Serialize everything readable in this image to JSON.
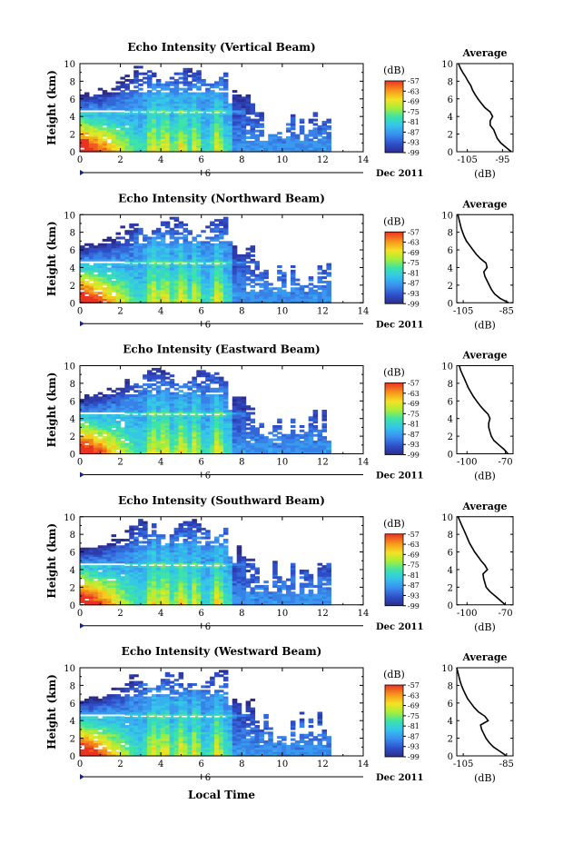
{
  "figure": {
    "xlabel": "Local Time",
    "date_label": "Dec 2011",
    "day_marker": "6",
    "colorbar_unit": "(dB)",
    "colorbar_ticks": [
      "-57",
      "-63",
      "-69",
      "-75",
      "-81",
      "-87",
      "-93",
      "-99"
    ],
    "average_title": "Average",
    "average_xlabel": "(dB)"
  },
  "chart_data": [
    {
      "type": "heatmap",
      "title": "Echo Intensity (Vertical Beam)",
      "xlabel": "Local Time",
      "ylabel": "Height (km)",
      "xlim": [
        0,
        14
      ],
      "ylim": [
        0,
        10
      ],
      "x_ticks": [
        "0",
        "2",
        "4",
        "6",
        "8",
        "10",
        "12",
        "14"
      ],
      "y_ticks": [
        "0",
        "2",
        "4",
        "6",
        "8",
        "10"
      ],
      "colorbar": {
        "unit": "(dB)",
        "range": [
          -99,
          -57
        ],
        "ticks": [
          "-57",
          "-63",
          "-69",
          "-75",
          "-81",
          "-87",
          "-93",
          "-99"
        ]
      },
      "features": {
        "bright_band_height_km": 4.5,
        "data_end_hour": 12.4
      },
      "average_profile": {
        "title": "Average",
        "xlabel": "(dB)",
        "x_ticks": [
          "-105",
          "-95"
        ],
        "xlim": [
          -108,
          -92
        ],
        "height_km": [
          0,
          0.5,
          1,
          1.5,
          2,
          2.5,
          3,
          3.5,
          4,
          4.5,
          5,
          5.5,
          6,
          6.5,
          7,
          7.5,
          8,
          8.5,
          9,
          9.5,
          10
        ],
        "values": [
          -92.5,
          -94,
          -95.5,
          -96.5,
          -97,
          -97.5,
          -98.5,
          -98.5,
          -97.8,
          -98.5,
          -100,
          -101,
          -102,
          -102.8,
          -103.5,
          -104,
          -104.8,
          -105.5,
          -106.3,
          -107,
          -107.5
        ]
      }
    },
    {
      "type": "heatmap",
      "title": "Echo Intensity (Northward Beam)",
      "xlabel": "Local Time",
      "ylabel": "Height (km)",
      "xlim": [
        0,
        14
      ],
      "ylim": [
        0,
        10
      ],
      "x_ticks": [
        "0",
        "2",
        "4",
        "6",
        "8",
        "10",
        "12",
        "14"
      ],
      "y_ticks": [
        "0",
        "2",
        "4",
        "6",
        "8",
        "10"
      ],
      "colorbar": {
        "unit": "(dB)",
        "range": [
          -99,
          -57
        ],
        "ticks": [
          "-57",
          "-63",
          "-69",
          "-75",
          "-81",
          "-87",
          "-93",
          "-99"
        ]
      },
      "features": {
        "bright_band_height_km": 4.5,
        "data_end_hour": 12.4
      },
      "average_profile": {
        "title": "Average",
        "xlabel": "(dB)",
        "x_ticks": [
          "-105",
          "-85"
        ],
        "xlim": [
          -108,
          -82
        ],
        "height_km": [
          0,
          0.5,
          1,
          1.5,
          2,
          2.5,
          3,
          3.5,
          4,
          4.5,
          5,
          5.5,
          6,
          6.5,
          7,
          7.5,
          8,
          8.5,
          9,
          9.5,
          10
        ],
        "values": [
          -84,
          -88,
          -90.5,
          -92,
          -93,
          -94,
          -95,
          -95.5,
          -94,
          -94.5,
          -97,
          -99,
          -100.5,
          -102,
          -103.5,
          -104.5,
          -105.3,
          -106,
          -106.5,
          -107,
          -107.5
        ]
      }
    },
    {
      "type": "heatmap",
      "title": "Echo Intensity (Eastward Beam)",
      "xlabel": "Local Time",
      "ylabel": "Height (km)",
      "xlim": [
        0,
        14
      ],
      "ylim": [
        0,
        10
      ],
      "x_ticks": [
        "0",
        "2",
        "4",
        "6",
        "8",
        "10",
        "12",
        "14"
      ],
      "y_ticks": [
        "0",
        "2",
        "4",
        "6",
        "8",
        "10"
      ],
      "colorbar": {
        "unit": "(dB)",
        "range": [
          -99,
          -57
        ],
        "ticks": [
          "-57",
          "-63",
          "-69",
          "-75",
          "-81",
          "-87",
          "-93",
          "-99"
        ]
      },
      "features": {
        "bright_band_height_km": 4.5,
        "data_end_hour": 12.4
      },
      "average_profile": {
        "title": "Average",
        "xlabel": "(dB)",
        "x_ticks": [
          "-100",
          "-70"
        ],
        "xlim": [
          -108,
          -64
        ],
        "height_km": [
          0,
          0.5,
          1,
          1.5,
          2,
          2.5,
          3,
          3.5,
          4,
          4.5,
          5,
          5.5,
          6,
          6.5,
          7,
          7.5,
          8,
          8.5,
          9,
          9.5,
          10
        ],
        "values": [
          -68,
          -71,
          -75,
          -79,
          -81,
          -82,
          -83,
          -83,
          -82,
          -83.5,
          -87,
          -90,
          -92.5,
          -95,
          -97,
          -99,
          -100.5,
          -102,
          -103.5,
          -105,
          -106
        ]
      }
    },
    {
      "type": "heatmap",
      "title": "Echo Intensity (Southward Beam)",
      "xlabel": "Local Time",
      "ylabel": "Height (km)",
      "xlim": [
        0,
        14
      ],
      "ylim": [
        0,
        10
      ],
      "x_ticks": [
        "0",
        "2",
        "4",
        "6",
        "8",
        "10",
        "12",
        "14"
      ],
      "y_ticks": [
        "0",
        "2",
        "4",
        "6",
        "8",
        "10"
      ],
      "colorbar": {
        "unit": "(dB)",
        "range": [
          -99,
          -57
        ],
        "ticks": [
          "-57",
          "-63",
          "-69",
          "-75",
          "-81",
          "-87",
          "-93",
          "-99"
        ]
      },
      "features": {
        "bright_band_height_km": 4.5,
        "data_end_hour": 12.4
      },
      "average_profile": {
        "title": "Average",
        "xlabel": "(dB)",
        "x_ticks": [
          "-100",
          "-70"
        ],
        "xlim": [
          -108,
          -64
        ],
        "height_km": [
          0,
          0.5,
          1,
          1.5,
          2,
          2.5,
          3,
          3.5,
          4,
          4.5,
          5,
          5.5,
          6,
          6.5,
          7,
          7.5,
          8,
          8.5,
          9,
          9.5,
          10
        ],
        "values": [
          -70,
          -74,
          -78,
          -82,
          -85,
          -86,
          -87,
          -87.5,
          -84,
          -86,
          -89,
          -91.5,
          -94,
          -96,
          -98,
          -99.5,
          -101,
          -102.5,
          -104,
          -105.5,
          -107
        ]
      }
    },
    {
      "type": "heatmap",
      "title": "Echo Intensity (Westward Beam)",
      "xlabel": "Local Time",
      "ylabel": "Height (km)",
      "xlim": [
        0,
        14
      ],
      "ylim": [
        0,
        10
      ],
      "x_ticks": [
        "0",
        "2",
        "4",
        "6",
        "8",
        "10",
        "12",
        "14"
      ],
      "y_ticks": [
        "0",
        "2",
        "4",
        "6",
        "8",
        "10"
      ],
      "colorbar": {
        "unit": "(dB)",
        "range": [
          -99,
          -57
        ],
        "ticks": [
          "-57",
          "-63",
          "-69",
          "-75",
          "-81",
          "-87",
          "-93",
          "-99"
        ]
      },
      "features": {
        "bright_band_height_km": 4.5,
        "data_end_hour": 12.4
      },
      "average_profile": {
        "title": "Average",
        "xlabel": "(dB)",
        "x_ticks": [
          "-105",
          "-85"
        ],
        "xlim": [
          -108,
          -82
        ],
        "height_km": [
          0,
          0.5,
          1,
          1.5,
          2,
          2.5,
          3,
          3.5,
          4,
          4.5,
          5,
          5.5,
          6,
          6.5,
          7,
          7.5,
          8,
          8.5,
          9,
          9.5,
          10
        ],
        "values": [
          -85,
          -88,
          -91,
          -93,
          -94.5,
          -95.5,
          -96.5,
          -97,
          -93.5,
          -95,
          -98,
          -100,
          -101.5,
          -103,
          -104,
          -105,
          -105.8,
          -106.5,
          -107,
          -107.5,
          -108
        ]
      }
    }
  ]
}
